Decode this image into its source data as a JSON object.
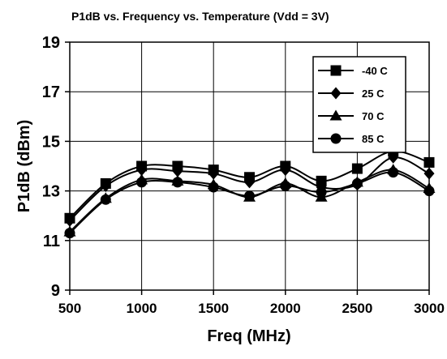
{
  "chart_data": {
    "type": "line",
    "title": "P1dB vs. Frequency vs. Temperature (Vdd = 3V)",
    "xlabel": "Freq (MHz)",
    "ylabel": "P1dB (dBm)",
    "xlim": [
      500,
      3000
    ],
    "ylim": [
      9,
      19
    ],
    "xticks": [
      500,
      1000,
      1500,
      2000,
      2500,
      3000
    ],
    "yticks": [
      9,
      11,
      13,
      15,
      17,
      19
    ],
    "grid": true,
    "legend_position": "top-right",
    "x": [
      500,
      750,
      1000,
      1250,
      1500,
      1750,
      2000,
      2250,
      2500,
      2750,
      3000
    ],
    "series": [
      {
        "name": "-40 C",
        "marker": "square",
        "values": [
          11.9,
          13.3,
          14.0,
          14.0,
          13.85,
          13.55,
          14.0,
          13.4,
          13.9,
          14.6,
          14.15
        ]
      },
      {
        "name": "25 C",
        "marker": "diamond",
        "values": [
          11.8,
          13.2,
          13.85,
          13.8,
          13.7,
          13.35,
          13.85,
          13.15,
          13.25,
          14.35,
          13.7
        ]
      },
      {
        "name": "70 C",
        "marker": "triangle",
        "values": [
          11.35,
          12.7,
          13.45,
          13.4,
          13.25,
          12.75,
          13.3,
          12.75,
          13.35,
          13.85,
          13.1
        ]
      },
      {
        "name": "85 C",
        "marker": "circle",
        "values": [
          11.3,
          12.65,
          13.35,
          13.35,
          13.15,
          12.8,
          13.2,
          12.95,
          13.3,
          13.75,
          13.0
        ]
      }
    ]
  }
}
